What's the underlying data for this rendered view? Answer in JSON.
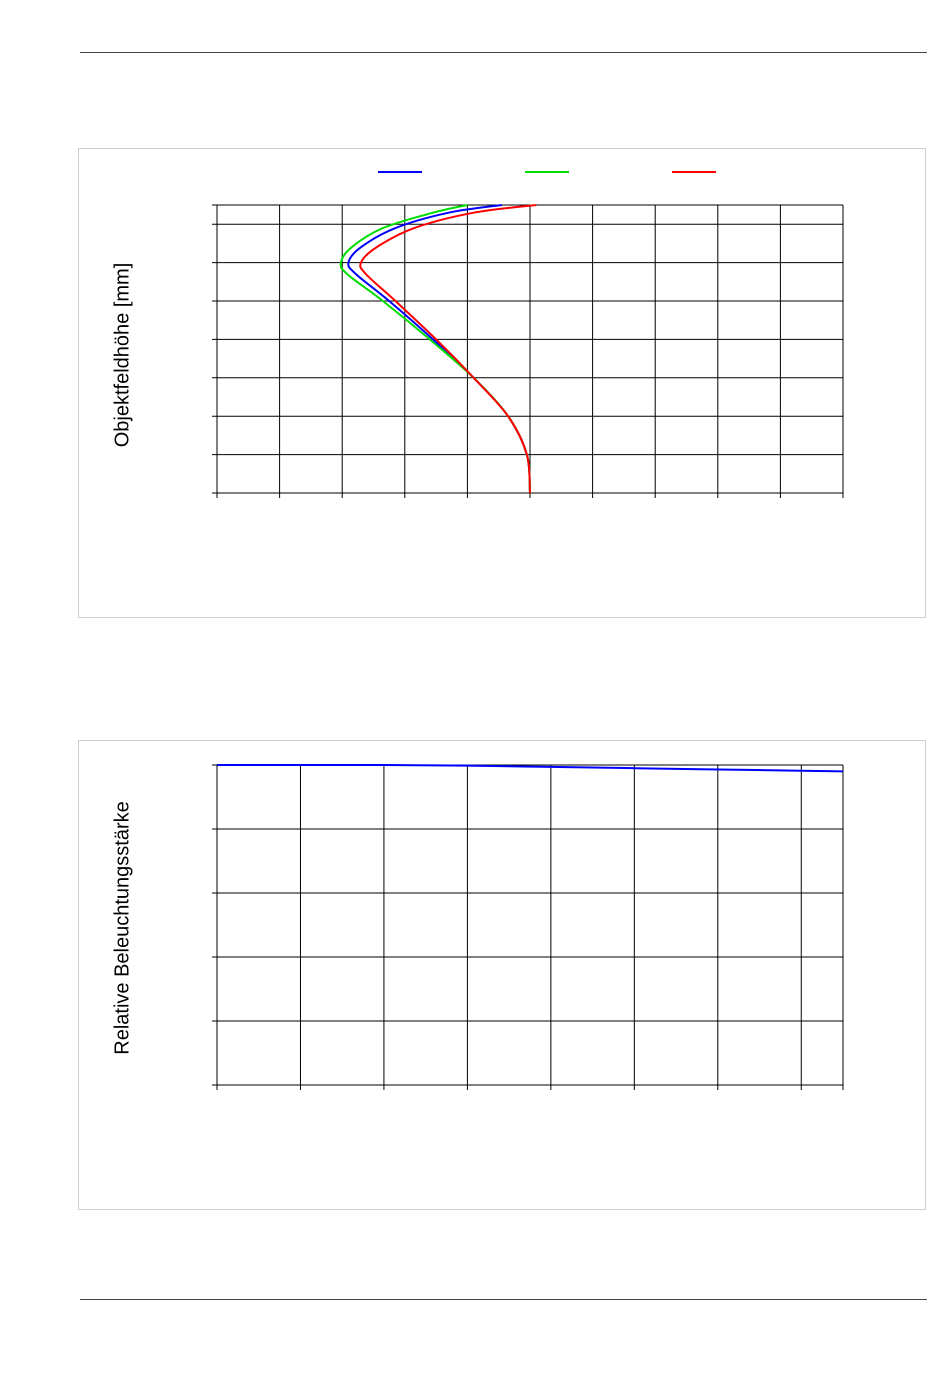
{
  "chart_data": [
    {
      "type": "line",
      "title": "",
      "xlabel": "",
      "ylabel": "Objektfeldhöhe [mm]",
      "grid": true,
      "legend": {
        "position": "top-center",
        "entries": [
          {
            "name": "",
            "color": "#0000ff"
          },
          {
            "name": "",
            "color": "#00dd00"
          },
          {
            "name": "",
            "color": "#ff0000"
          }
        ]
      },
      "xlim": [
        0,
        10
      ],
      "ylim": [
        0,
        7.5
      ],
      "x_gridlines": 10,
      "y_gridlines": [
        0,
        1,
        2,
        3,
        4,
        5,
        6,
        7,
        7.5
      ],
      "series": [
        {
          "color": "#0000ff",
          "x": [
            5.0,
            4.95,
            4.65,
            4.1,
            3.45,
            2.75,
            2.22,
            2.1,
            2.3,
            2.85,
            3.7,
            4.55
          ],
          "y": [
            0,
            1.0,
            2.0,
            3.0,
            4.0,
            5.0,
            5.7,
            6.0,
            6.4,
            6.9,
            7.3,
            7.5
          ]
        },
        {
          "color": "#00dd00",
          "x": [
            5.0,
            4.95,
            4.65,
            4.1,
            3.4,
            2.65,
            2.08,
            1.98,
            2.15,
            2.65,
            3.45,
            4.0
          ],
          "y": [
            0,
            1.0,
            2.0,
            3.0,
            4.0,
            5.0,
            5.7,
            6.0,
            6.4,
            6.9,
            7.3,
            7.5
          ]
        },
        {
          "color": "#ff0000",
          "x": [
            5.0,
            4.95,
            4.65,
            4.1,
            3.5,
            2.85,
            2.38,
            2.3,
            2.55,
            3.15,
            4.1,
            5.1
          ],
          "y": [
            0,
            1.0,
            2.0,
            3.0,
            4.0,
            5.0,
            5.7,
            6.0,
            6.4,
            6.9,
            7.3,
            7.5
          ]
        }
      ]
    },
    {
      "type": "line",
      "title": "",
      "xlabel": "",
      "ylabel": "Relative Beleuchtungsstärke",
      "grid": true,
      "xlim": [
        0,
        7.5
      ],
      "ylim": [
        0,
        5
      ],
      "x_gridlines": [
        0,
        1,
        2,
        3,
        4,
        5,
        6,
        7,
        7.5
      ],
      "y_gridlines": [
        0,
        1,
        2,
        3,
        4,
        5
      ],
      "series": [
        {
          "color": "#0000ff",
          "x": [
            0,
            1,
            2,
            3,
            4,
            5,
            6,
            7,
            7.5
          ],
          "y": [
            5.0,
            5.0,
            5.0,
            4.99,
            4.97,
            4.95,
            4.93,
            4.91,
            4.9
          ]
        }
      ]
    }
  ]
}
